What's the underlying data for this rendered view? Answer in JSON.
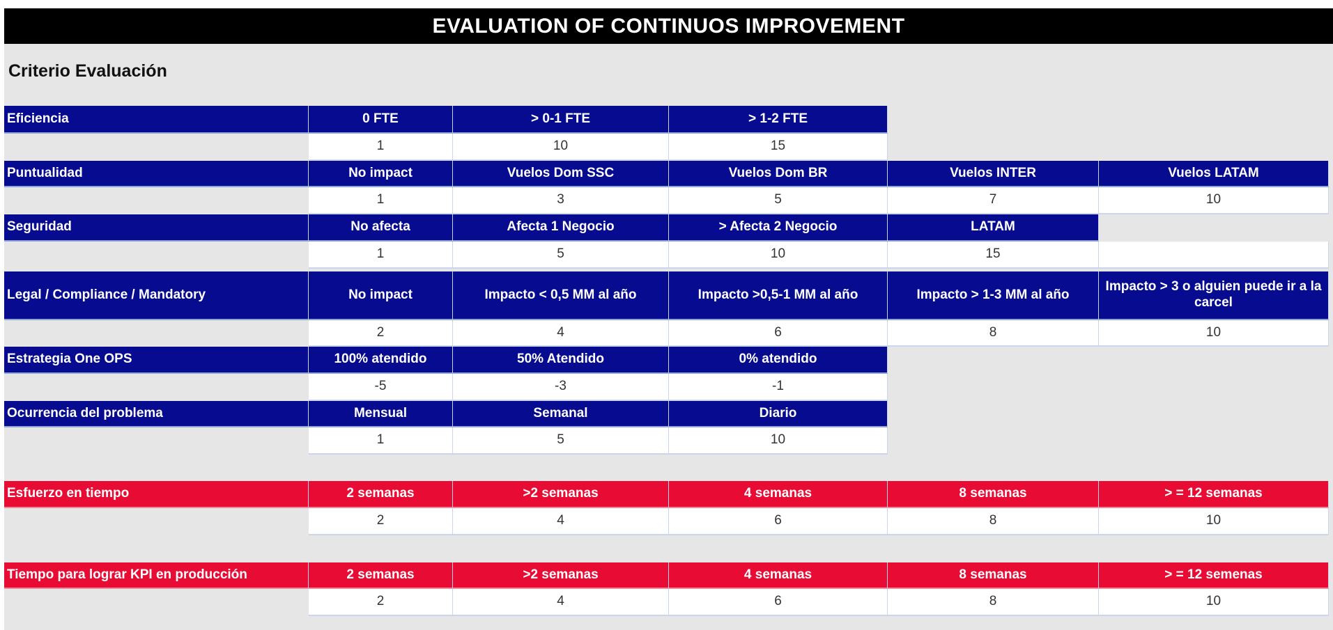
{
  "title": "EVALUATION OF CONTINUOS IMPROVEMENT",
  "subtitle": "Criterio Evaluación",
  "colors": {
    "header_blue": "#060b8f",
    "header_red": "#e80c35",
    "background": "#e6e6e6"
  },
  "criteria": [
    {
      "label": "Eficiencia",
      "color": "navy",
      "options": [
        "0 FTE",
        "> 0-1 FTE",
        "> 1-2 FTE"
      ],
      "scores": [
        "1",
        "10",
        "15"
      ]
    },
    {
      "label": "Puntualidad",
      "color": "navy",
      "options": [
        "No impact",
        "Vuelos Dom SSC",
        "Vuelos Dom BR",
        "Vuelos INTER",
        "Vuelos LATAM"
      ],
      "scores": [
        "1",
        "3",
        "5",
        "7",
        "10"
      ]
    },
    {
      "label": "Seguridad",
      "color": "navy",
      "options": [
        "No afecta",
        "Afecta 1 Negocio",
        "> Afecta 2 Negocio",
        "LATAM"
      ],
      "scores": [
        "1",
        "5",
        "10",
        "15",
        ""
      ]
    },
    {
      "label": "Legal / Compliance / Mandatory",
      "color": "navy",
      "options": [
        "No impact",
        "Impacto <  0,5 MM al año",
        "Impacto >0,5-1 MM al año",
        "Impacto > 1-3 MM al año",
        "Impacto > 3 o alguien puede ir a la carcel"
      ],
      "scores": [
        "2",
        "4",
        "6",
        "8",
        "10"
      ]
    },
    {
      "label": "Estrategia One OPS",
      "color": "navy",
      "options": [
        "100% atendido",
        "50% Atendido",
        "0% atendido"
      ],
      "scores": [
        "-5",
        "-3",
        "-1"
      ]
    },
    {
      "label": "Ocurrencia del problema",
      "color": "navy",
      "options": [
        "Mensual",
        "Semanal",
        "Diario"
      ],
      "scores": [
        "1",
        "5",
        "10"
      ]
    },
    {
      "label": "Esfuerzo en tiempo",
      "color": "red",
      "options": [
        "2 semanas",
        ">2 semanas",
        "4 semanas",
        "8 semanas",
        "> = 12 semanas"
      ],
      "scores": [
        "2",
        "4",
        "6",
        "8",
        "10"
      ]
    },
    {
      "label": "Tiempo para lograr KPI en producción",
      "color": "red",
      "options": [
        "2 semanas",
        ">2 semanas",
        "4 semanas",
        "8 semanas",
        "> = 12 semenas"
      ],
      "scores": [
        "2",
        "4",
        "6",
        "8",
        "10"
      ]
    }
  ]
}
